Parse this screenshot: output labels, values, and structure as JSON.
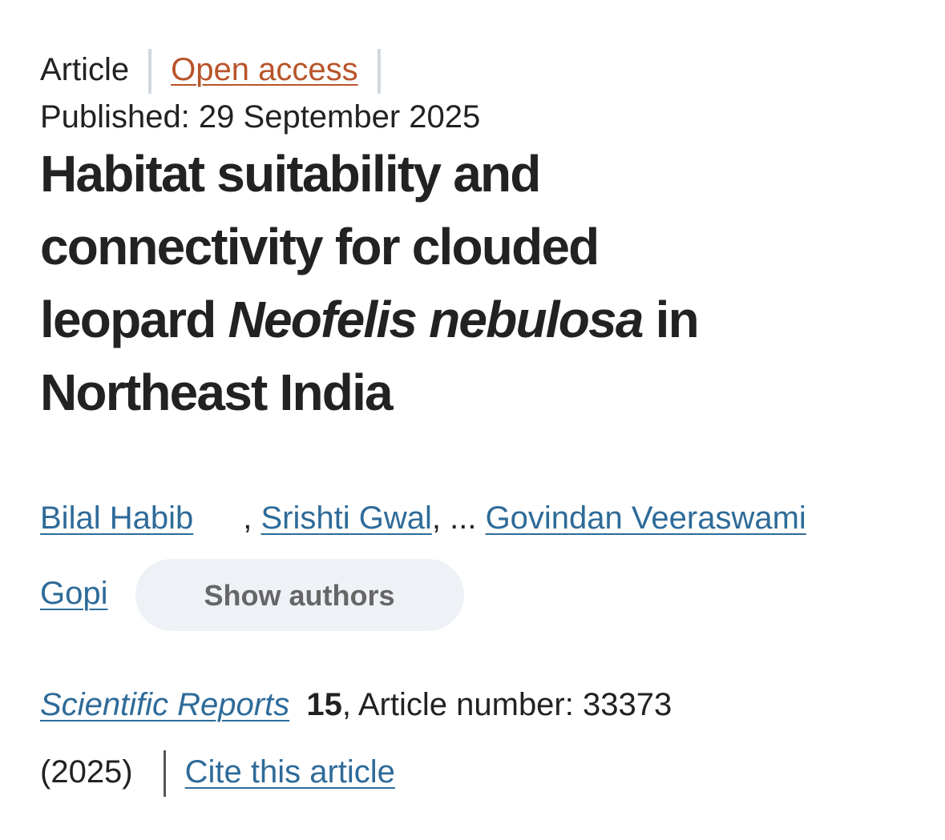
{
  "header": {
    "article_type": "Article",
    "access": "Open access",
    "published": "Published: 29 September 2025"
  },
  "title": {
    "line1": "Habitat suitability and",
    "line2": "connectivity for clouded",
    "line3_start": "leopard",
    "species": "Neofelis nebulosa",
    "line3_end": "in",
    "line4": "Northeast India"
  },
  "authors": {
    "names": [
      "Bilal Habib",
      "Srishti Gwal",
      "Govindan Veeraswami Gopi"
    ],
    "separators": [
      ",",
      ", ..."
    ],
    "show_authors": "Show authors"
  },
  "citation": {
    "journal": "Scientific Reports",
    "volume": "15",
    "article_number": ", Article number: 33373",
    "year": "(2025)",
    "cite": "Cite this article"
  }
}
